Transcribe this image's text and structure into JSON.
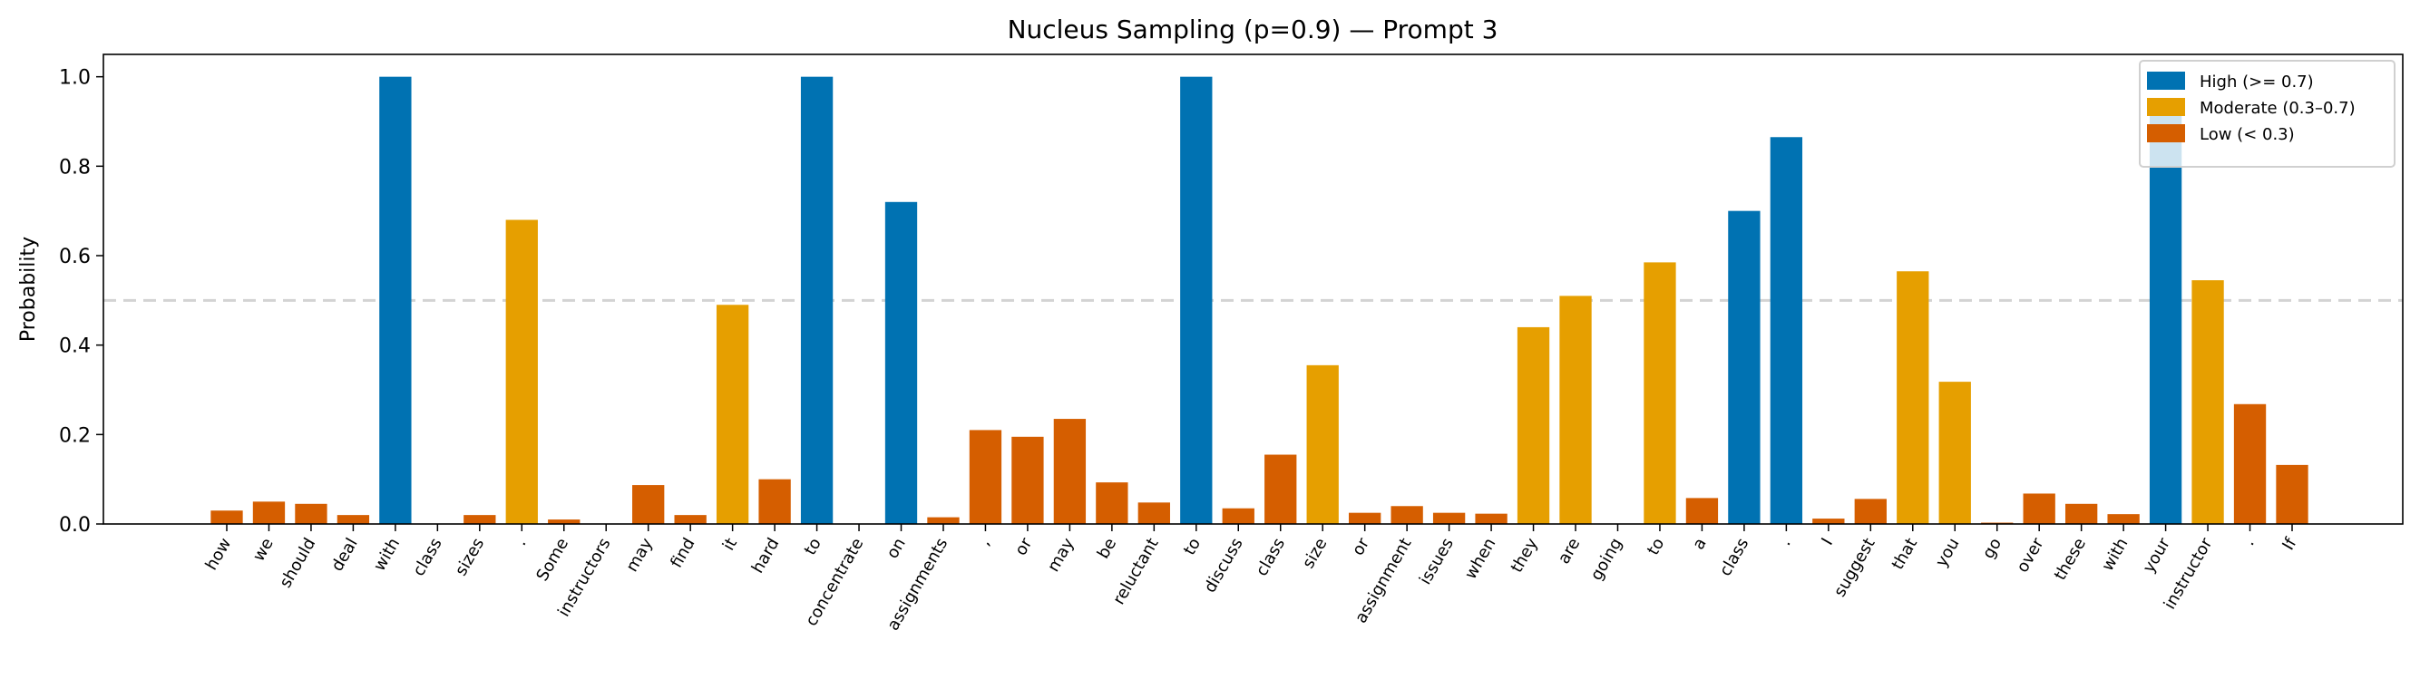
{
  "chart_data": {
    "type": "bar",
    "title": "Nucleus Sampling (p=0.9) — Prompt 3",
    "xlabel": "",
    "ylabel": "Probability",
    "ylim": [
      0,
      1.05
    ],
    "yticks": [
      "0.0",
      "0.2",
      "0.4",
      "0.6",
      "0.8",
      "1.0"
    ],
    "ytick_values": [
      0,
      0.2,
      0.4,
      0.6,
      0.8,
      1.0
    ],
    "reference_line": 0.5,
    "legend_position": "top-right",
    "legend": [
      {
        "label": "High (>= 0.7)",
        "color": "#0072B2"
      },
      {
        "label": "Moderate (0.3–0.7)",
        "color": "#E69F00"
      },
      {
        "label": "Low (< 0.3)",
        "color": "#D55E00"
      }
    ],
    "categories": [
      "how",
      "we",
      "should",
      "deal",
      "with",
      "class",
      "sizes",
      ".",
      "Some",
      "instructors",
      "may",
      "find",
      "it",
      "hard",
      "to",
      "concentrate",
      "on",
      "assignments",
      ",",
      "or",
      "may",
      "be",
      "reluctant",
      "to",
      "discuss",
      "class",
      "size",
      "or",
      "assignment",
      "issues",
      "when",
      "they",
      "are",
      "going",
      "to",
      "a",
      "class",
      ".",
      "I",
      "suggest",
      "that",
      "you",
      "go",
      "over",
      "these",
      "with",
      "your",
      "instructor",
      ".",
      "If"
    ],
    "values": [
      0.03,
      0.05,
      0.045,
      0.02,
      1.0,
      0.001,
      0.02,
      0.68,
      0.01,
      0.001,
      0.087,
      0.02,
      0.49,
      0.1,
      1.0,
      0.001,
      0.72,
      0.015,
      0.21,
      0.195,
      0.235,
      0.093,
      0.048,
      1.0,
      0.035,
      0.155,
      0.355,
      0.025,
      0.04,
      0.025,
      0.023,
      0.44,
      0.51,
      0.001,
      0.585,
      0.058,
      0.7,
      0.865,
      0.012,
      0.056,
      0.565,
      0.318,
      0.003,
      0.068,
      0.045,
      0.022,
      0.93,
      0.545,
      0.268,
      0.132
    ]
  }
}
